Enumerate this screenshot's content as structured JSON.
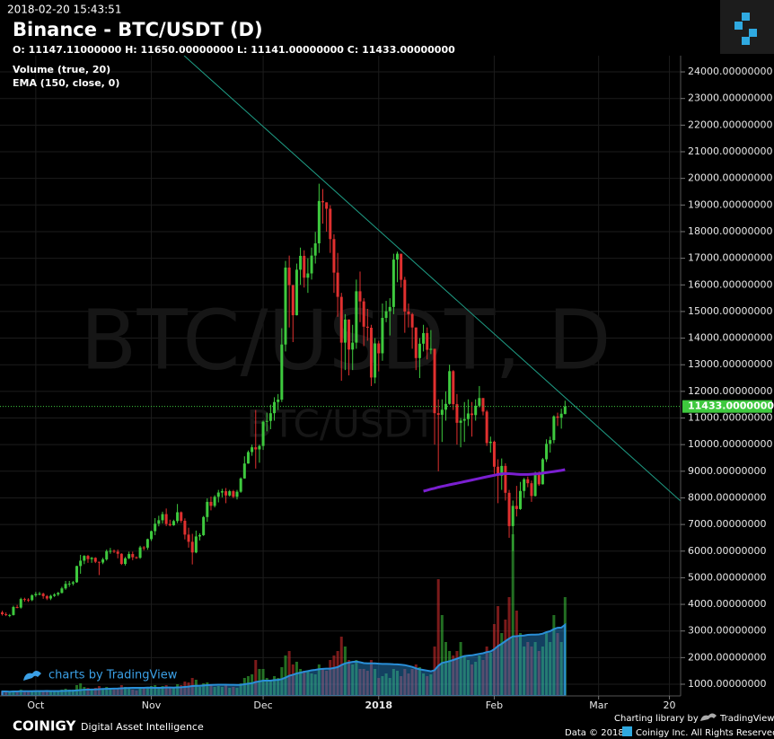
{
  "chart_data": {
    "type": "candlestick",
    "timestamp": "2018-02-20 15:43:51",
    "title": "Binance - BTC/USDT (D)",
    "ohlc_header": "O: 11147.11000000 H: 11650.00000000 L: 11141.00000000 C: 11433.00000000",
    "indicators": [
      "Volume (true, 20)",
      "EMA (150, close, 0)"
    ],
    "watermark": "BTC/USDT, D",
    "watermark_sub": "BTC/USDT",
    "up_color": "#3ec93e",
    "down_color": "#e0302f",
    "volume_ma_color": "#2a8fd8",
    "grid": true,
    "xlim": [
      -0.6,
      182
    ],
    "ylim": [
      562,
      24609
    ],
    "xticks": [
      {
        "value": 9,
        "label": "Oct"
      },
      {
        "value": 40,
        "label": "Nov"
      },
      {
        "value": 70,
        "label": "Dec"
      },
      {
        "value": 101,
        "label": "2018"
      },
      {
        "value": 132,
        "label": "Feb"
      },
      {
        "value": 160,
        "label": "Mar"
      },
      {
        "value": 179,
        "label": "20"
      }
    ],
    "yticks": [
      {
        "value": 1000,
        "label": "1000.00000000"
      },
      {
        "value": 2000,
        "label": "2000.00000000"
      },
      {
        "value": 3000,
        "label": "3000.00000000"
      },
      {
        "value": 4000,
        "label": "4000.00000000"
      },
      {
        "value": 5000,
        "label": "5000.00000000"
      },
      {
        "value": 6000,
        "label": "6000.00000000"
      },
      {
        "value": 7000,
        "label": "7000.00000000"
      },
      {
        "value": 8000,
        "label": "8000.00000000"
      },
      {
        "value": 9000,
        "label": "9000.00000000"
      },
      {
        "value": 10000,
        "label": "10000.00000000"
      },
      {
        "value": 11000,
        "label": "11000.00000000"
      },
      {
        "value": 12000,
        "label": "12000.00000000"
      },
      {
        "value": 13000,
        "label": "13000.00000000"
      },
      {
        "value": 14000,
        "label": "14000.00000000"
      },
      {
        "value": 15000,
        "label": "15000.00000000"
      },
      {
        "value": 16000,
        "label": "16000.00000000"
      },
      {
        "value": 17000,
        "label": "17000.00000000"
      },
      {
        "value": 18000,
        "label": "18000.00000000"
      },
      {
        "value": 19000,
        "label": "19000.00000000"
      },
      {
        "value": 20000,
        "label": "20000.00000000"
      },
      {
        "value": 21000,
        "label": "21000.00000000"
      },
      {
        "value": 22000,
        "label": "22000.00000000"
      },
      {
        "value": 23000,
        "label": "23000.00000000"
      },
      {
        "value": 24000,
        "label": "24000.00000000"
      }
    ],
    "last_price": {
      "value": 11433,
      "label": "11433.00000000",
      "color": "#3ec93e"
    },
    "open": [
      3700,
      3630,
      3600,
      3600,
      3900,
      3880,
      4200,
      4180,
      4160,
      4340,
      4390,
      4400,
      4310,
      4220,
      4320,
      4370,
      4430,
      4600,
      4770,
      4780,
      4830,
      5440,
      5640,
      5820,
      5700,
      5750,
      5600,
      5570,
      5690,
      6000,
      6010,
      5980,
      5900,
      5520,
      5730,
      5890,
      5770,
      5750,
      6140,
      6130,
      6450,
      6750,
      7030,
      7160,
      7390,
      7020,
      6970,
      7130,
      7460,
      7140,
      6620,
      6350,
      5950,
      6550,
      6600,
      7280,
      7850,
      7700,
      8040,
      8200,
      8250,
      8090,
      8250,
      8040,
      8230,
      8730,
      9290,
      9720,
      9900,
      9820,
      9950,
      10860,
      10890,
      11180,
      11600,
      11690,
      13760,
      16650,
      15990,
      14860,
      16570,
      17090,
      16270,
      16430,
      17100,
      17560,
      19150,
      19100,
      18860,
      17720,
      16460,
      15550,
      13830,
      14700,
      13570,
      13830,
      15760,
      15380,
      14430,
      14390,
      12520,
      13800,
      13430,
      14760,
      15010,
      15170,
      16950,
      17170,
      16190,
      15000,
      14900,
      14400,
      13250,
      13790,
      14190,
      13560,
      13600,
      11180,
      11120,
      11310,
      11530,
      12760,
      11520,
      10820,
      10900,
      10960,
      11170,
      11110,
      11460,
      11750,
      11240,
      10060,
      10110,
      9170,
      8830,
      9200,
      8190,
      6940,
      7700,
      7580,
      8260,
      8700,
      8550,
      8070,
      8890,
      8510,
      9450,
      10030,
      10170,
      11060,
      11010,
      11147.11
    ],
    "high": [
      3760,
      3700,
      3640,
      3950,
      3980,
      4250,
      4250,
      4230,
      4380,
      4470,
      4470,
      4440,
      4350,
      4360,
      4420,
      4470,
      4660,
      4880,
      4880,
      4880,
      5450,
      5860,
      5850,
      5860,
      5780,
      5770,
      5600,
      5750,
      6060,
      6120,
      6060,
      6060,
      5920,
      5780,
      5980,
      5980,
      5800,
      6200,
      6190,
      6470,
      6770,
      7240,
      7330,
      7480,
      7600,
      7180,
      7180,
      7770,
      7490,
      7230,
      6880,
      6650,
      6770,
      6670,
      7320,
      7980,
      8050,
      8100,
      8300,
      8340,
      8370,
      8300,
      8300,
      8300,
      8770,
      9560,
      9780,
      10000,
      11300,
      10000,
      10900,
      11200,
      11500,
      11780,
      11900,
      14370,
      16900,
      17100,
      16000,
      16800,
      17400,
      17300,
      17000,
      17400,
      17990,
      19800,
      19600,
      19100,
      18990,
      17900,
      17200,
      15700,
      14900,
      14700,
      14500,
      16200,
      16500,
      15500,
      15100,
      14500,
      14000,
      13900,
      15300,
      15400,
      15500,
      17170,
      17250,
      17100,
      16300,
      15300,
      14950,
      14400,
      14000,
      14500,
      14400,
      14300,
      13600,
      11700,
      11700,
      12000,
      13000,
      12800,
      11900,
      11000,
      11600,
      11700,
      11600,
      11700,
      12200,
      11750,
      11300,
      10300,
      10150,
      9450,
      9480,
      9300,
      8300,
      7900,
      8450,
      8600,
      8750,
      8800,
      8650,
      8980,
      8990,
      9500,
      10200,
      10300,
      11100,
      11200,
      11350,
      11650
    ],
    "low": [
      3580,
      3560,
      3520,
      3580,
      3850,
      3840,
      4100,
      4090,
      4120,
      4280,
      4340,
      4210,
      4160,
      4160,
      4280,
      4310,
      4410,
      4550,
      4660,
      4710,
      4810,
      5150,
      5510,
      5560,
      5560,
      5550,
      5100,
      5510,
      5640,
      5900,
      5930,
      5730,
      5480,
      5460,
      5700,
      5660,
      5710,
      5710,
      6030,
      6050,
      6380,
      6600,
      6930,
      7040,
      6940,
      6930,
      6950,
      7050,
      7060,
      6440,
      6130,
      5500,
      5920,
      6400,
      6570,
      7100,
      7530,
      7640,
      7830,
      8020,
      7800,
      8050,
      7990,
      7940,
      8190,
      8720,
      9280,
      9580,
      9100,
      9320,
      9800,
      10500,
      10580,
      10900,
      11300,
      11600,
      13500,
      14400,
      13850,
      14850,
      16000,
      15900,
      15700,
      16200,
      16800,
      17200,
      18300,
      18000,
      17200,
      15700,
      14800,
      12400,
      12800,
      12600,
      12800,
      13600,
      14600,
      13700,
      13900,
      12200,
      12300,
      12750,
      13150,
      14600,
      14100,
      14900,
      16100,
      15900,
      14200,
      14400,
      13600,
      12800,
      12500,
      13500,
      13200,
      13400,
      10000,
      9000,
      10100,
      10900,
      11500,
      11300,
      10000,
      9900,
      10100,
      10700,
      10300,
      10900,
      11400,
      11100,
      9950,
      9700,
      8900,
      7800,
      8300,
      7900,
      6500,
      6000,
      7300,
      7550,
      8000,
      8400,
      7850,
      8050,
      8450,
      8500,
      9350,
      9700,
      10050,
      10700,
      10600,
      11141
    ],
    "close": [
      3630,
      3600,
      3600,
      3900,
      3880,
      4200,
      4180,
      4160,
      4340,
      4390,
      4400,
      4310,
      4220,
      4320,
      4370,
      4430,
      4600,
      4770,
      4780,
      4830,
      5440,
      5640,
      5820,
      5700,
      5750,
      5600,
      5570,
      5690,
      6000,
      6010,
      5980,
      5900,
      5520,
      5730,
      5890,
      5770,
      5750,
      6140,
      6130,
      6450,
      6750,
      7030,
      7160,
      7390,
      7020,
      6970,
      7130,
      7460,
      7140,
      6620,
      6350,
      5950,
      6550,
      6600,
      7280,
      7850,
      7700,
      8040,
      8200,
      8250,
      8090,
      8250,
      8040,
      8230,
      8730,
      9290,
      9720,
      9900,
      9820,
      9950,
      10860,
      10890,
      11180,
      11600,
      11690,
      13760,
      16650,
      15990,
      14860,
      16570,
      17090,
      16270,
      16430,
      17100,
      17560,
      19150,
      19100,
      18860,
      17720,
      16460,
      15550,
      13830,
      14700,
      13570,
      13830,
      15760,
      15380,
      14430,
      14390,
      12520,
      13800,
      13430,
      14760,
      15010,
      15170,
      16950,
      17170,
      16190,
      15000,
      14900,
      14400,
      13250,
      13790,
      14190,
      13560,
      13600,
      11180,
      11120,
      11310,
      11530,
      12760,
      11520,
      10820,
      10900,
      10960,
      11170,
      11110,
      11460,
      11750,
      11240,
      10060,
      10110,
      9170,
      8830,
      9200,
      8190,
      6940,
      7700,
      7580,
      8260,
      8700,
      8550,
      8070,
      8890,
      8510,
      9450,
      10030,
      10170,
      11060,
      11010,
      11160,
      11433
    ],
    "volume": [
      5,
      5,
      4,
      6,
      5,
      7,
      5,
      5,
      6,
      6,
      5,
      6,
      6,
      5,
      5,
      5,
      7,
      8,
      7,
      7,
      12,
      14,
      10,
      9,
      8,
      9,
      11,
      8,
      10,
      8,
      7,
      8,
      12,
      10,
      8,
      7,
      6,
      9,
      8,
      10,
      11,
      12,
      10,
      11,
      12,
      9,
      9,
      13,
      12,
      16,
      15,
      20,
      18,
      10,
      14,
      15,
      12,
      10,
      11,
      10,
      12,
      9,
      10,
      9,
      14,
      20,
      22,
      24,
      40,
      30,
      30,
      20,
      18,
      22,
      20,
      32,
      45,
      50,
      35,
      38,
      30,
      28,
      27,
      25,
      24,
      35,
      30,
      28,
      40,
      45,
      50,
      66,
      55,
      40,
      35,
      40,
      30,
      30,
      28,
      40,
      30,
      20,
      22,
      25,
      20,
      30,
      28,
      22,
      30,
      25,
      30,
      35,
      32,
      25,
      22,
      24,
      55,
      130,
      90,
      60,
      50,
      45,
      50,
      60,
      45,
      40,
      35,
      38,
      45,
      40,
      55,
      48,
      80,
      100,
      70,
      85,
      110,
      180,
      95,
      70,
      55,
      60,
      55,
      60,
      50,
      55,
      70,
      60,
      90,
      70,
      60,
      110
    ],
    "ema": {
      "color": "#7a1fd0",
      "values": [
        null,
        null,
        null,
        null,
        null,
        null,
        null,
        null,
        null,
        null,
        null,
        null,
        null,
        null,
        null,
        null,
        null,
        null,
        null,
        null,
        null,
        null,
        null,
        null,
        null,
        null,
        null,
        null,
        null,
        null,
        null,
        null,
        null,
        null,
        null,
        null,
        null,
        null,
        null,
        null,
        null,
        null,
        null,
        null,
        null,
        null,
        null,
        null,
        null,
        null,
        null,
        null,
        null,
        null,
        null,
        null,
        null,
        null,
        null,
        null,
        null,
        null,
        null,
        null,
        null,
        null,
        null,
        null,
        null,
        null,
        null,
        null,
        null,
        null,
        null,
        null,
        null,
        null,
        null,
        null,
        null,
        null,
        null,
        null,
        null,
        null,
        null,
        null,
        null,
        null,
        null,
        null,
        null,
        null,
        null,
        null,
        null,
        null,
        null,
        null,
        null,
        null,
        null,
        null,
        null,
        null,
        null,
        null,
        null,
        null,
        null,
        null,
        null,
        8250,
        8290,
        8330,
        8360,
        8400,
        8430,
        8460,
        8490,
        8520,
        8550,
        8580,
        8610,
        8640,
        8670,
        8700,
        8730,
        8760,
        8790,
        8820,
        8850,
        8880,
        8900,
        8910,
        8910,
        8900,
        8890,
        8880,
        8880,
        8880,
        8890,
        8900,
        8910,
        8930,
        8950,
        8970,
        8990,
        9010,
        9030,
        9060
      ]
    },
    "trendline": {
      "color": "#1f9e86",
      "x": [
        48.8,
        182
      ],
      "y": [
        24609,
        7880
      ]
    }
  },
  "footer": {
    "tv_badge": "charts by TradingView",
    "brand": "COINIGY",
    "tagline": "Digital Asset Intelligence",
    "library": "Charting library by",
    "library_name": "TradingView",
    "data": "Data © 2018",
    "rights": "Coinigy Inc. All Rights Reserved."
  }
}
